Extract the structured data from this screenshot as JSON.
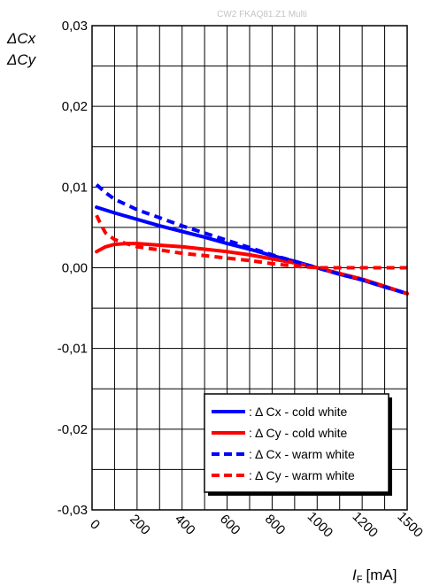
{
  "watermark": "CW2 FKAQ81.Z1 Multi",
  "chart_data": {
    "type": "line",
    "ylabel_lines": [
      "ΔCx",
      "ΔCy"
    ],
    "xlabel": {
      "symbol": "I",
      "subscript": "F",
      "unit": "[mA]"
    },
    "xlim": [
      0,
      1500
    ],
    "ylim": [
      -0.03,
      0.03
    ],
    "grid": true,
    "legend_position": "bottom-right",
    "x_ticks": [
      0,
      200,
      400,
      600,
      800,
      1000,
      1200,
      1500
    ],
    "y_ticks": [
      {
        "value": 0.03,
        "label": "0,03"
      },
      {
        "value": 0.02,
        "label": "0,02"
      },
      {
        "value": 0.01,
        "label": "0,01"
      },
      {
        "value": 0.0,
        "label": "0,00"
      },
      {
        "value": -0.01,
        "label": "-0,01"
      },
      {
        "value": -0.02,
        "label": "-0,02"
      },
      {
        "value": -0.03,
        "label": "-0,03"
      }
    ],
    "series": [
      {
        "name": ": Δ Cx - cold white",
        "color": "#0000ff",
        "dashed": false,
        "x": [
          20,
          100,
          200,
          300,
          400,
          500,
          600,
          700,
          800,
          900,
          1000,
          1100,
          1200,
          1300,
          1500
        ],
        "y": [
          0.0075,
          0.0068,
          0.006,
          0.0052,
          0.0045,
          0.0038,
          0.003,
          0.0023,
          0.0015,
          0.0008,
          0.0,
          -0.0008,
          -0.0015,
          -0.0021,
          -0.0032
        ]
      },
      {
        "name": ": Δ Cy - cold white",
        "color": "#ff0000",
        "dashed": false,
        "x": [
          20,
          60,
          100,
          150,
          200,
          300,
          400,
          500,
          600,
          700,
          800,
          900,
          1000,
          1100,
          1200,
          1300,
          1500
        ],
        "y": [
          0.002,
          0.0026,
          0.0029,
          0.003,
          0.003,
          0.0028,
          0.0026,
          0.0023,
          0.002,
          0.0016,
          0.0011,
          0.0006,
          0.0,
          -0.0007,
          -0.0014,
          -0.002,
          -0.0032
        ]
      },
      {
        "name": ": Δ Cx - warm white",
        "color": "#0000ff",
        "dashed": true,
        "x": [
          20,
          60,
          100,
          200,
          300,
          400,
          500,
          600,
          700,
          800,
          900,
          1000,
          1100,
          1200,
          1300,
          1500
        ],
        "y": [
          0.0103,
          0.0093,
          0.0085,
          0.0072,
          0.0062,
          0.0052,
          0.0043,
          0.0034,
          0.0025,
          0.0016,
          0.0008,
          0.0,
          -0.0008,
          -0.0015,
          -0.0021,
          -0.0032
        ]
      },
      {
        "name": ": Δ Cy - warm white",
        "color": "#ff0000",
        "dashed": true,
        "x": [
          20,
          40,
          60,
          100,
          150,
          200,
          300,
          400,
          500,
          600,
          700,
          800,
          900,
          1000,
          1100,
          1200,
          1300,
          1500
        ],
        "y": [
          0.0065,
          0.0053,
          0.0043,
          0.0035,
          0.003,
          0.0026,
          0.0022,
          0.0018,
          0.0015,
          0.0012,
          0.0009,
          0.0005,
          0.0002,
          0.0,
          0.0,
          0.0,
          0.0,
          0.0
        ]
      }
    ]
  }
}
